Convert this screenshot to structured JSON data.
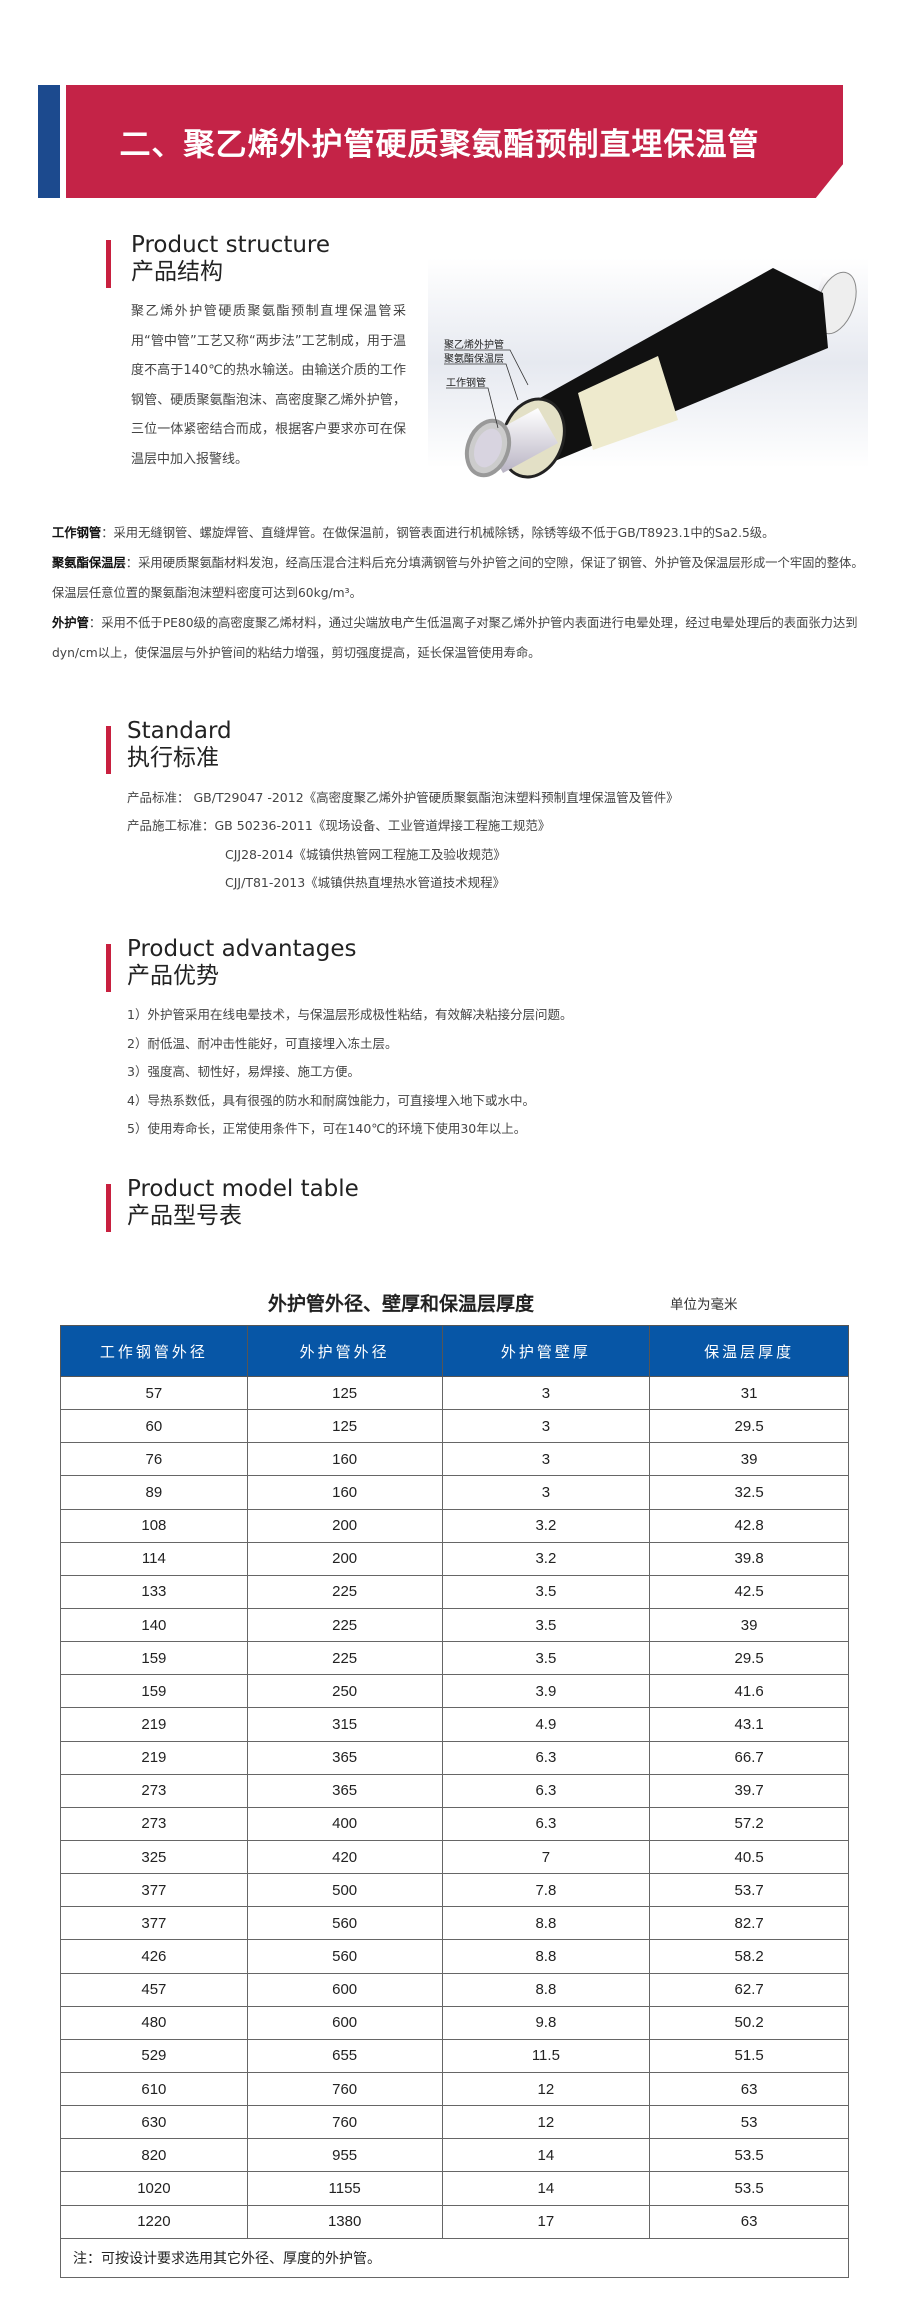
{
  "banner": {
    "title": "二、聚乙烯外护管硬质聚氨酯预制直埋保温管",
    "colors": {
      "red": "#c42347",
      "blue": "#1c4a8e"
    }
  },
  "structure": {
    "title_en": "Product structure",
    "title_cn": "产品结构",
    "paragraph": "聚乙烯外护管硬质聚氨酯预制直埋保温管采用“管中管”工艺又称“两步法”工艺制成，用于温度不高于140℃的热水输送。由输送介质的工作钢管、硬质聚氨酯泡沫、高密度聚乙烯外护管，三位一体紧密结合而成，根据客户要求亦可在保温层中加入报警线。",
    "diagram_labels": [
      "聚乙烯外护管",
      "聚氨酯保温层",
      "工作钢管"
    ],
    "details": [
      {
        "term": "工作钢管",
        "text": "：采用无缝钢管、螺旋焊管、直缝焊管。在做保温前，钢管表面进行机械除锈，除锈等级不低于GB/T8923.1中的Sa2.5级。"
      },
      {
        "term": "聚氨酯保温层",
        "text": "：采用硬质聚氨酯材料发泡，经高压混合注料后充分填满钢管与外护管之间的空隙，保证了钢管、外护管及保温层形成一个牢固的整体。保温层任意位置的聚氨酯泡沫塑料密度可达到60kg/m³。"
      },
      {
        "term": "外护管",
        "text": "：采用不低于PE80级的高密度聚乙烯材料，通过尖端放电产生低温离子对聚乙烯外护管内表面进行电晕处理，经过电晕处理后的表面张力达到dyn/cm以上，使保温层与外护管间的粘结力增强，剪切强度提高，延长保温管使用寿命。"
      }
    ]
  },
  "standard": {
    "title_en": "Standard",
    "title_cn": "执行标准",
    "lines": [
      "产品标准： GB/T29047 -2012《高密度聚乙烯外护管硬质聚氨酯泡沫塑料预制直埋保温管及管件》",
      "产品施工标准：GB 50236-2011《现场设备、工业管道焊接工程施工规范》",
      "CJJ28-2014《城镇供热管网工程施工及验收规范》",
      "CJJ/T81-2013《城镇供热直埋热水管道技术规程》"
    ]
  },
  "advantages": {
    "title_en": "Product advantages",
    "title_cn": "产品优势",
    "items": [
      "1）外护管采用在线电晕技术，与保温层形成极性粘结，有效解决粘接分层问题。",
      "2）耐低温、耐冲击性能好，可直接埋入冻土层。",
      "3）强度高、韧性好，易焊接、施工方便。",
      "4）导热系数低，具有很强的防水和耐腐蚀能力，可直接埋入地下或水中。",
      "5）使用寿命长，正常使用条件下，可在140℃的环境下使用30年以上。"
    ]
  },
  "model_table": {
    "title_en": "Product model table",
    "title_cn": "产品型号表",
    "table_title": "外护管外径、壁厚和保温层厚度",
    "unit": "单位为毫米",
    "header_color": "#0756a6",
    "columns": [
      "工作钢管外径",
      "外护管外径",
      "外护管壁厚",
      "保温层厚度"
    ],
    "rows": [
      [
        "57",
        "125",
        "3",
        "31"
      ],
      [
        "60",
        "125",
        "3",
        "29.5"
      ],
      [
        "76",
        "160",
        "3",
        "39"
      ],
      [
        "89",
        "160",
        "3",
        "32.5"
      ],
      [
        "108",
        "200",
        "3.2",
        "42.8"
      ],
      [
        "114",
        "200",
        "3.2",
        "39.8"
      ],
      [
        "133",
        "225",
        "3.5",
        "42.5"
      ],
      [
        "140",
        "225",
        "3.5",
        "39"
      ],
      [
        "159",
        "225",
        "3.5",
        "29.5"
      ],
      [
        "159",
        "250",
        "3.9",
        "41.6"
      ],
      [
        "219",
        "315",
        "4.9",
        "43.1"
      ],
      [
        "219",
        "365",
        "6.3",
        "66.7"
      ],
      [
        "273",
        "365",
        "6.3",
        "39.7"
      ],
      [
        "273",
        "400",
        "6.3",
        "57.2"
      ],
      [
        "325",
        "420",
        "7",
        "40.5"
      ],
      [
        "377",
        "500",
        "7.8",
        "53.7"
      ],
      [
        "377",
        "560",
        "8.8",
        "82.7"
      ],
      [
        "426",
        "560",
        "8.8",
        "58.2"
      ],
      [
        "457",
        "600",
        "8.8",
        "62.7"
      ],
      [
        "480",
        "600",
        "9.8",
        "50.2"
      ],
      [
        "529",
        "655",
        "11.5",
        "51.5"
      ],
      [
        "610",
        "760",
        "12",
        "63"
      ],
      [
        "630",
        "760",
        "12",
        "53"
      ],
      [
        "820",
        "955",
        "14",
        "53.5"
      ],
      [
        "1020",
        "1155",
        "14",
        "53.5"
      ],
      [
        "1220",
        "1380",
        "17",
        "63"
      ]
    ],
    "note": "注：可按设计要求选用其它外径、厚度的外护管。"
  }
}
